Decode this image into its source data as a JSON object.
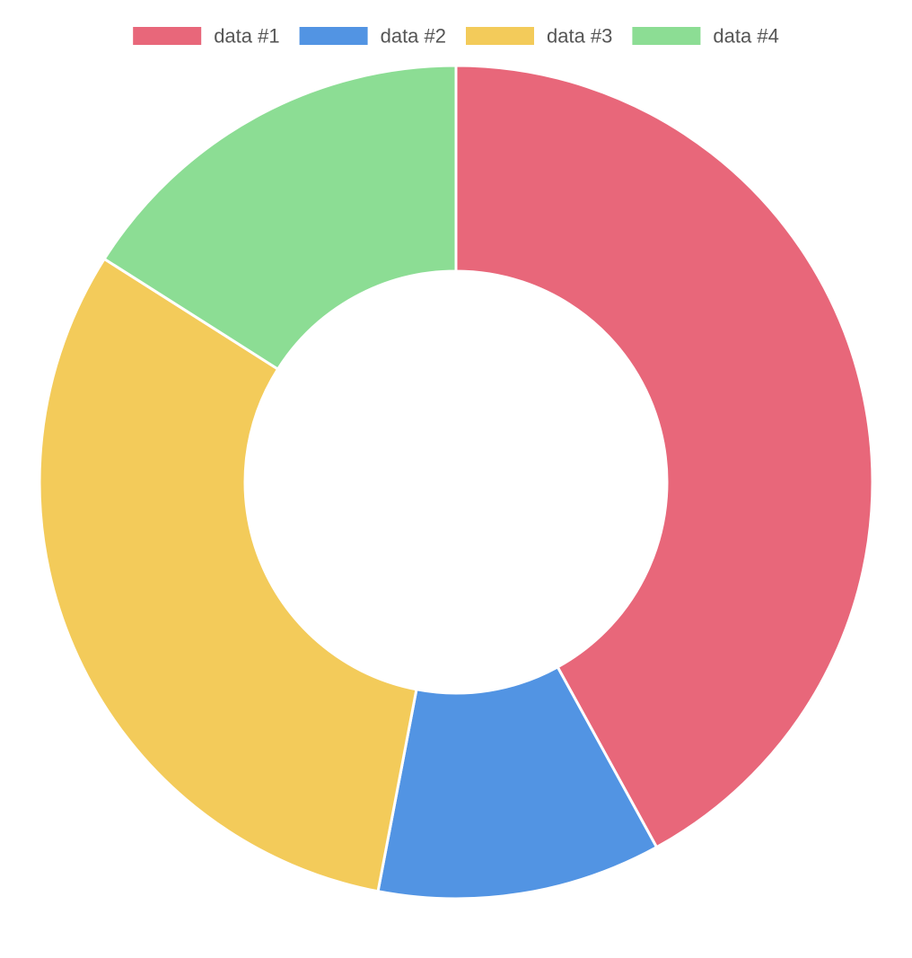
{
  "chart_data": {
    "type": "pie",
    "variant": "doughnut",
    "legend_position": "top",
    "slices": [
      {
        "label": "data #1",
        "value": 42,
        "color": "#E8677A"
      },
      {
        "label": "data #2",
        "value": 11,
        "color": "#5294E3"
      },
      {
        "label": "data #3",
        "value": 31,
        "color": "#F3CB5A"
      },
      {
        "label": "data #4",
        "value": 16,
        "color": "#8CDD94"
      }
    ]
  }
}
